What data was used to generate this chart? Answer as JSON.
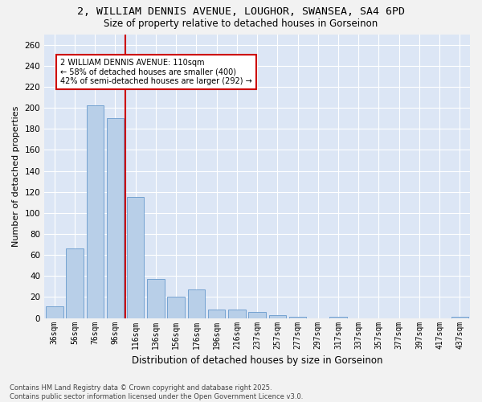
{
  "title_line1": "2, WILLIAM DENNIS AVENUE, LOUGHOR, SWANSEA, SA4 6PD",
  "title_line2": "Size of property relative to detached houses in Gorseinon",
  "xlabel": "Distribution of detached houses by size in Gorseinon",
  "ylabel": "Number of detached properties",
  "categories": [
    "36sqm",
    "56sqm",
    "76sqm",
    "96sqm",
    "116sqm",
    "136sqm",
    "156sqm",
    "176sqm",
    "196sqm",
    "216sqm",
    "237sqm",
    "257sqm",
    "277sqm",
    "297sqm",
    "317sqm",
    "337sqm",
    "357sqm",
    "377sqm",
    "397sqm",
    "417sqm",
    "437sqm"
  ],
  "values": [
    11,
    66,
    202,
    190,
    115,
    37,
    20,
    27,
    8,
    8,
    6,
    3,
    1,
    0,
    1,
    0,
    0,
    0,
    0,
    0,
    1
  ],
  "bar_color": "#b8cfe8",
  "bar_edge_color": "#6699cc",
  "vline_color": "#cc0000",
  "vline_index": 4,
  "annotation_text": "2 WILLIAM DENNIS AVENUE: 110sqm\n← 58% of detached houses are smaller (400)\n42% of semi-detached houses are larger (292) →",
  "annotation_box_facecolor": "#ffffff",
  "annotation_box_edgecolor": "#cc0000",
  "ylim": [
    0,
    270
  ],
  "yticks": [
    0,
    20,
    40,
    60,
    80,
    100,
    120,
    140,
    160,
    180,
    200,
    220,
    240,
    260
  ],
  "fig_background": "#f2f2f2",
  "plot_background": "#dce6f5",
  "grid_color": "#ffffff",
  "footnote": "Contains HM Land Registry data © Crown copyright and database right 2025.\nContains public sector information licensed under the Open Government Licence v3.0."
}
